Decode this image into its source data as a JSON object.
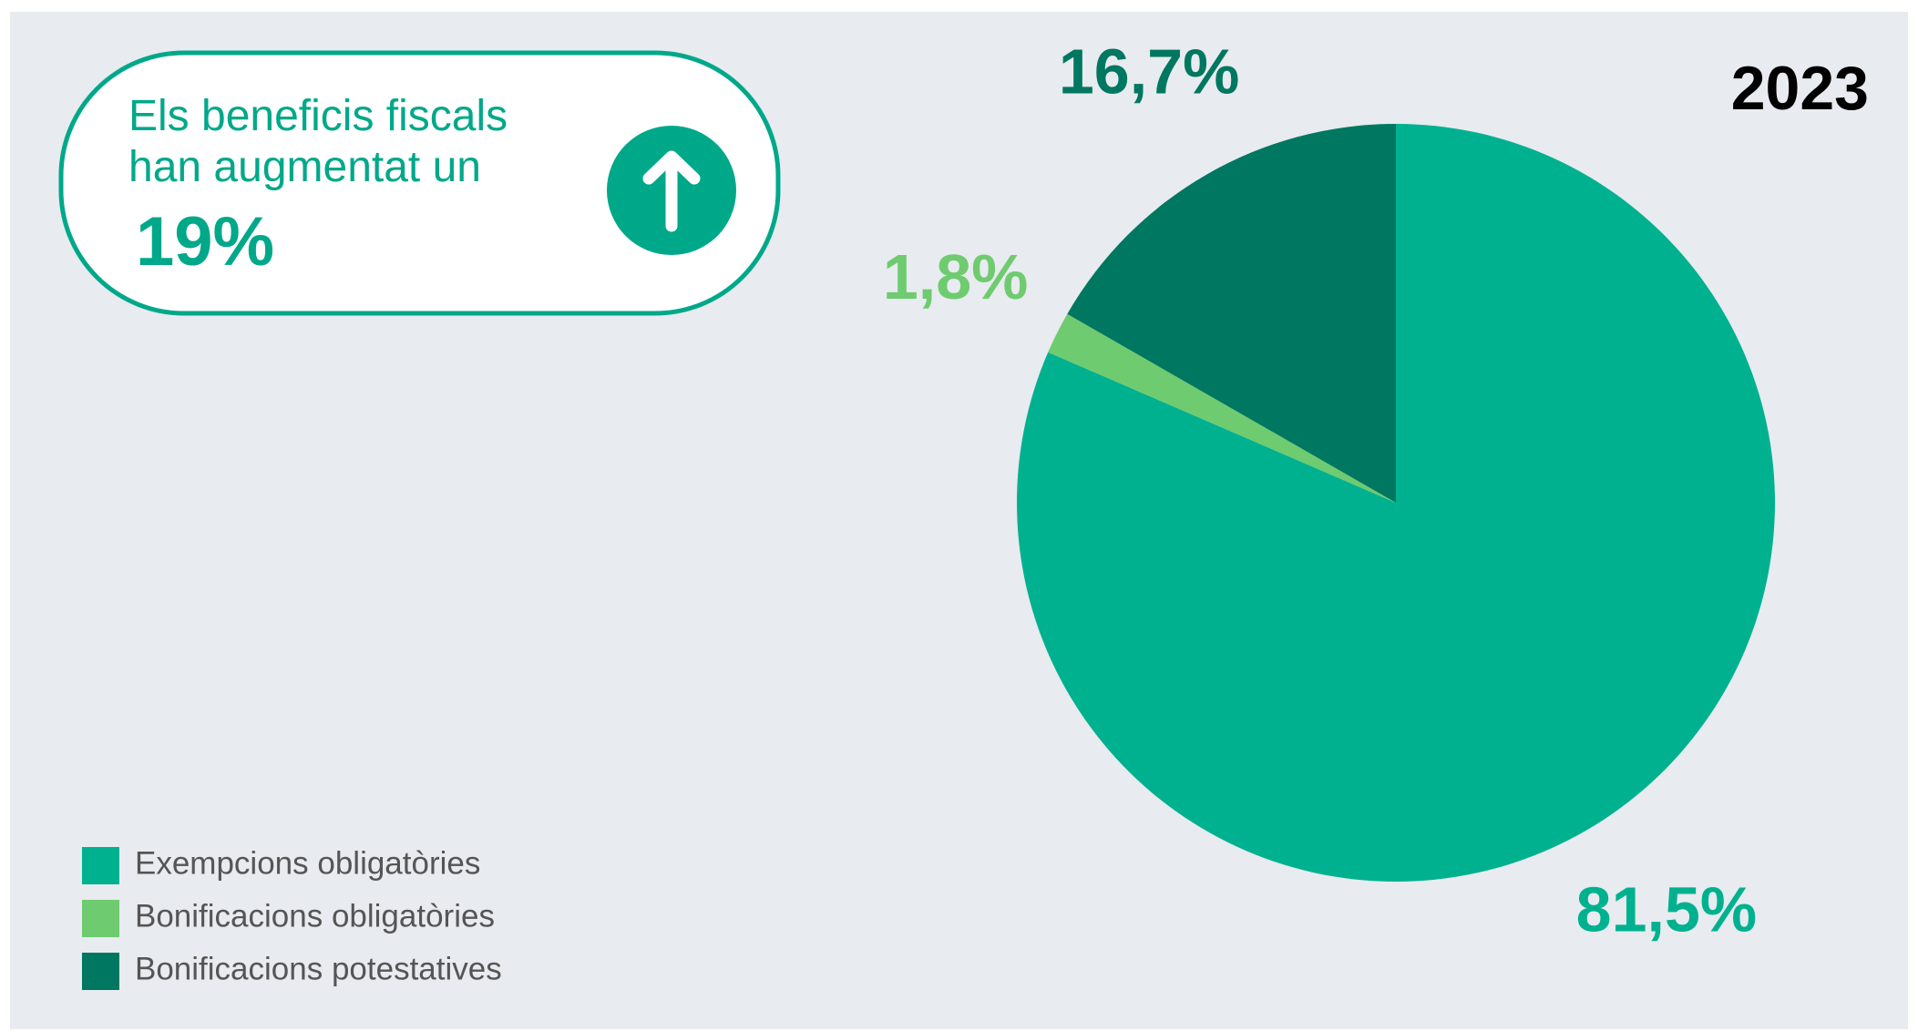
{
  "chart_data": {
    "type": "pie",
    "title": "2023",
    "categories": [
      "Exempcions obligatòries",
      "Bonificacions obligatòries",
      "Bonificacions potestatives"
    ],
    "values": [
      81.5,
      1.8,
      16.7
    ],
    "value_labels": [
      "81,5%",
      "1,8%",
      "16,7%"
    ],
    "colors": [
      "#00b190",
      "#6fcb6f",
      "#007760"
    ],
    "legend": "bottom-left",
    "callout": {
      "text": "Els beneficis fiscals han augmentat un",
      "value": 19,
      "label": "19%"
    }
  }
}
